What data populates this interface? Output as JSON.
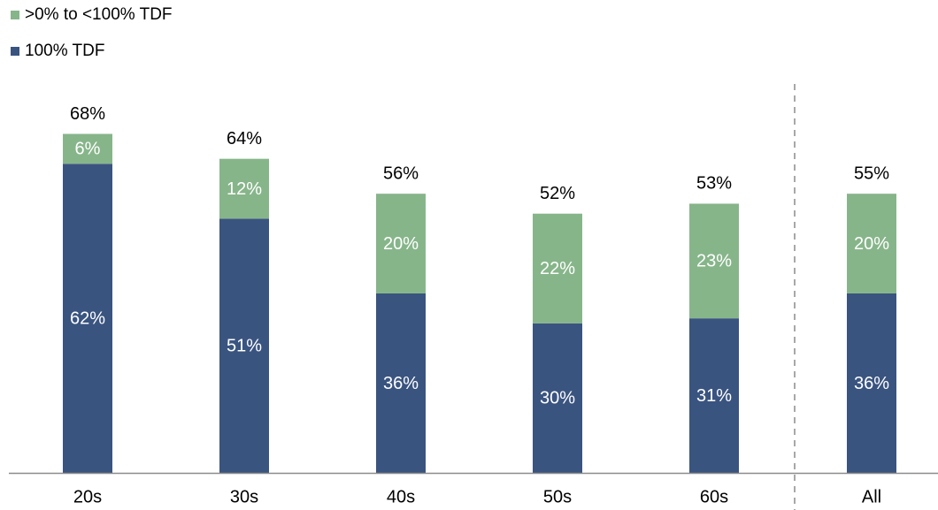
{
  "chart_data": {
    "type": "bar",
    "stacked": true,
    "categories": [
      "20s",
      "30s",
      "40s",
      "50s",
      "60s",
      "All"
    ],
    "series": [
      {
        "name": "100% TDF",
        "color": "#3A5480",
        "values": [
          62,
          51,
          36,
          30,
          31,
          36
        ]
      },
      {
        "name": ">0% to <100% TDF",
        "color": "#87B58A",
        "values": [
          6,
          12,
          20,
          22,
          23,
          20
        ]
      }
    ],
    "value_labels": [
      [
        "62%",
        "51%",
        "36%",
        "30%",
        "31%",
        "36%"
      ],
      [
        "6%",
        "12%",
        "20%",
        "22%",
        "23%",
        "20%"
      ]
    ],
    "totals": [
      68,
      64,
      56,
      52,
      53,
      55
    ],
    "total_labels": [
      "68%",
      "64%",
      "56%",
      "52%",
      "53%",
      "55%"
    ],
    "ylim": [
      0,
      68
    ],
    "legend": {
      "position": "top-left",
      "order": [
        ">0% to <100% TDF",
        "100% TDF"
      ]
    },
    "separator_before": "All",
    "grid": false
  }
}
